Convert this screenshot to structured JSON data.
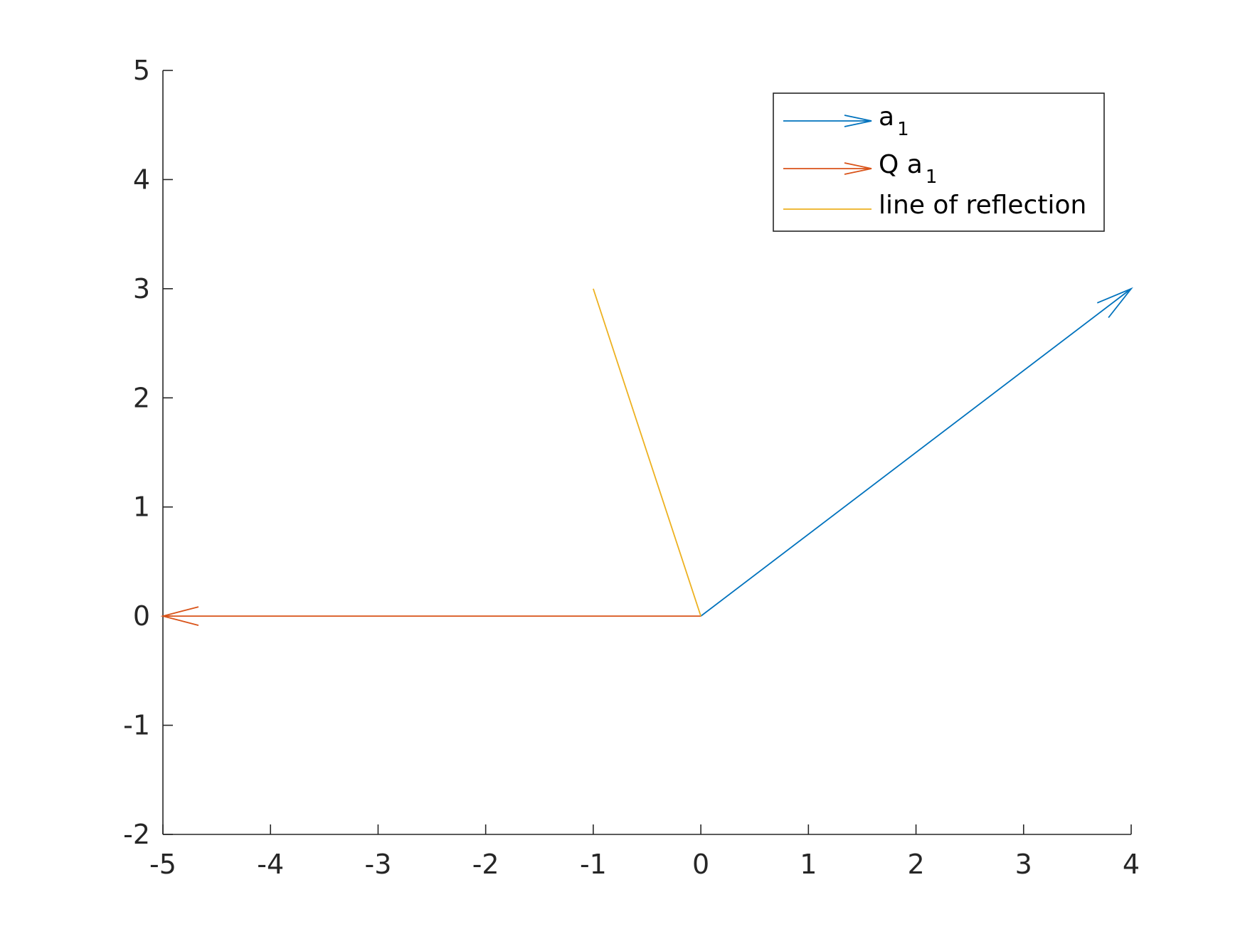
{
  "chart_data": {
    "type": "line",
    "title": "",
    "xlabel": "",
    "ylabel": "",
    "xlim": [
      -5,
      4
    ],
    "ylim": [
      -2,
      5
    ],
    "x_ticks": [
      -5,
      -4,
      -3,
      -2,
      -1,
      0,
      1,
      2,
      3,
      4
    ],
    "y_ticks": [
      -2,
      -1,
      0,
      1,
      2,
      3,
      4,
      5
    ],
    "x_tick_labels": [
      "-5",
      "-4",
      "-3",
      "-2",
      "-1",
      "0",
      "1",
      "2",
      "3",
      "4"
    ],
    "y_tick_labels": [
      "-2",
      "-1",
      "0",
      "1",
      "2",
      "3",
      "4",
      "5"
    ],
    "grid": false,
    "box": false,
    "legend_position": "top-right",
    "series": [
      {
        "kind": "arrow",
        "legend_main": "a",
        "legend_sub": "1",
        "color": "#0072BD",
        "x": [
          0,
          4
        ],
        "y": [
          0,
          3
        ]
      },
      {
        "kind": "arrow",
        "legend_main": "Q a",
        "legend_sub": "1",
        "color": "#D95319",
        "x": [
          0,
          -5
        ],
        "y": [
          0,
          0
        ]
      },
      {
        "kind": "line",
        "legend_main": "line of reflection",
        "legend_sub": "",
        "color": "#EDB120",
        "x": [
          -1,
          0
        ],
        "y": [
          3,
          0
        ]
      }
    ]
  }
}
